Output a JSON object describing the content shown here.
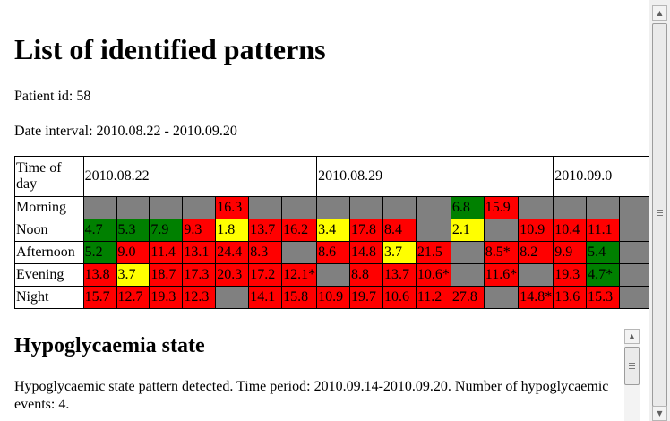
{
  "heading": "List of identified patterns",
  "patient_line": "Patient id: 58",
  "date_line": "Date interval: 2010.08.22 - 2010.09.20",
  "table": {
    "corner": "Time of day",
    "weeks": [
      "2010.08.22",
      "2010.08.29",
      "2010.09.0"
    ],
    "rows": [
      {
        "label": "Morning",
        "cells": [
          {
            "v": "",
            "c": "x"
          },
          {
            "v": "",
            "c": "x"
          },
          {
            "v": "",
            "c": "x"
          },
          {
            "v": "",
            "c": "x"
          },
          {
            "v": "16.3",
            "c": "r"
          },
          {
            "v": "",
            "c": "x"
          },
          {
            "v": "",
            "c": "x"
          },
          {
            "v": "",
            "c": "x"
          },
          {
            "v": "",
            "c": "x"
          },
          {
            "v": "",
            "c": "x"
          },
          {
            "v": "",
            "c": "x"
          },
          {
            "v": "6.8",
            "c": "g"
          },
          {
            "v": "15.9",
            "c": "r"
          },
          {
            "v": "",
            "c": "x"
          },
          {
            "v": "",
            "c": "x"
          },
          {
            "v": "",
            "c": "x"
          },
          {
            "v": "",
            "c": "x"
          }
        ]
      },
      {
        "label": "Noon",
        "cells": [
          {
            "v": "4.7",
            "c": "g"
          },
          {
            "v": "5.3",
            "c": "g"
          },
          {
            "v": "7.9",
            "c": "g"
          },
          {
            "v": "9.3",
            "c": "r"
          },
          {
            "v": "1.8",
            "c": "y"
          },
          {
            "v": "13.7",
            "c": "r"
          },
          {
            "v": "16.2",
            "c": "r"
          },
          {
            "v": "3.4",
            "c": "y"
          },
          {
            "v": "17.8",
            "c": "r"
          },
          {
            "v": "8.4",
            "c": "r"
          },
          {
            "v": "",
            "c": "x"
          },
          {
            "v": "2.1",
            "c": "y"
          },
          {
            "v": "",
            "c": "x"
          },
          {
            "v": "10.9",
            "c": "r"
          },
          {
            "v": "10.4",
            "c": "r"
          },
          {
            "v": "11.1",
            "c": "r"
          },
          {
            "v": "",
            "c": "x"
          }
        ]
      },
      {
        "label": "Afternoon",
        "cells": [
          {
            "v": "5.2",
            "c": "g"
          },
          {
            "v": "9.0",
            "c": "r"
          },
          {
            "v": "11.4",
            "c": "r"
          },
          {
            "v": "13.1",
            "c": "r"
          },
          {
            "v": "24.4",
            "c": "r"
          },
          {
            "v": "8.3",
            "c": "r"
          },
          {
            "v": "",
            "c": "x"
          },
          {
            "v": "8.6",
            "c": "r"
          },
          {
            "v": "14.8",
            "c": "r"
          },
          {
            "v": "3.7",
            "c": "y"
          },
          {
            "v": "21.5",
            "c": "r"
          },
          {
            "v": "",
            "c": "x"
          },
          {
            "v": "8.5*",
            "c": "r"
          },
          {
            "v": "8.2",
            "c": "r"
          },
          {
            "v": "9.9",
            "c": "r"
          },
          {
            "v": "5.4",
            "c": "g"
          },
          {
            "v": "",
            "c": "x"
          }
        ]
      },
      {
        "label": "Evening",
        "cells": [
          {
            "v": "13.8",
            "c": "r"
          },
          {
            "v": "3.7",
            "c": "y"
          },
          {
            "v": "18.7",
            "c": "r"
          },
          {
            "v": "17.3",
            "c": "r"
          },
          {
            "v": "20.3",
            "c": "r"
          },
          {
            "v": "17.2",
            "c": "r"
          },
          {
            "v": "12.1*",
            "c": "r"
          },
          {
            "v": "",
            "c": "x"
          },
          {
            "v": "8.8",
            "c": "r"
          },
          {
            "v": "13.7",
            "c": "r"
          },
          {
            "v": "10.6*",
            "c": "r"
          },
          {
            "v": "",
            "c": "x"
          },
          {
            "v": "11.6*",
            "c": "r"
          },
          {
            "v": "",
            "c": "x"
          },
          {
            "v": "19.3",
            "c": "r"
          },
          {
            "v": "4.7*",
            "c": "g"
          },
          {
            "v": "",
            "c": "x"
          }
        ]
      },
      {
        "label": "Night",
        "cells": [
          {
            "v": "15.7",
            "c": "r"
          },
          {
            "v": "12.7",
            "c": "r"
          },
          {
            "v": "19.3",
            "c": "r"
          },
          {
            "v": "12.3",
            "c": "r"
          },
          {
            "v": "",
            "c": "x"
          },
          {
            "v": "14.1",
            "c": "r"
          },
          {
            "v": "15.8",
            "c": "r"
          },
          {
            "v": "10.9",
            "c": "r"
          },
          {
            "v": "19.7",
            "c": "r"
          },
          {
            "v": "10.6",
            "c": "r"
          },
          {
            "v": "11.2",
            "c": "r"
          },
          {
            "v": "27.8",
            "c": "r"
          },
          {
            "v": "",
            "c": "x"
          },
          {
            "v": "14.8*",
            "c": "r"
          },
          {
            "v": "13.6",
            "c": "r"
          },
          {
            "v": "15.3",
            "c": "r"
          },
          {
            "v": "",
            "c": "x"
          }
        ]
      }
    ]
  },
  "section_title": "Hypoglycaemia state",
  "section_text": "Hypoglycaemic state pattern detected. Time period: 2010.09.14-2010.09.20. Number of hypoglycaemic events: 4.",
  "icons": {
    "scroll_up": "scroll-up-arrow-icon",
    "scroll_down": "scroll-down-arrow-icon"
  }
}
